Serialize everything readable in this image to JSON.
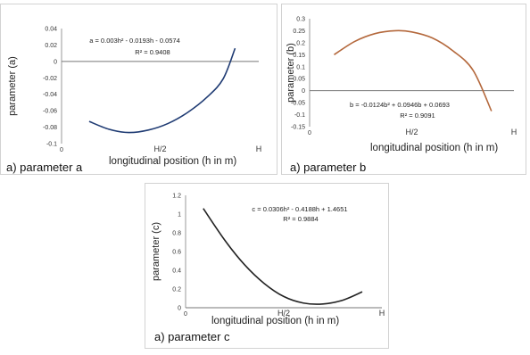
{
  "chart_data": [
    {
      "type": "line",
      "ylabel": "parameter (a)",
      "xlabel": "longitudinal position (h in m)",
      "caption": "a) parameter a",
      "equation": "a = 0.003h² - 0.0193h - 0.0574",
      "r2": "R² = 0.9408",
      "x_ticks": [
        "0",
        "H/2",
        "H"
      ],
      "y_ticks": [
        "0.04",
        "0.02",
        "0",
        "-0.02",
        "-0.04",
        "-0.06",
        "-0.08",
        "-0.1"
      ],
      "ylim": [
        -0.1,
        0.04
      ],
      "xlim": [
        0,
        1
      ],
      "grid": false,
      "series": [
        {
          "color": "#1f3b73",
          "x": [
            0.14,
            0.24,
            0.34,
            0.44,
            0.54,
            0.64,
            0.74,
            0.82,
            0.88
          ],
          "y": [
            -0.073,
            -0.0825,
            -0.0865,
            -0.0835,
            -0.0755,
            -0.062,
            -0.043,
            -0.021,
            0.016
          ]
        }
      ]
    },
    {
      "type": "line",
      "ylabel": "parameter (b)",
      "xlabel": "longitudinal position (h in m)",
      "caption": "a) parameter b",
      "equation": "b = -0.0124b² + 0.0946b + 0.0693",
      "r2": "R² = 0.9091",
      "x_ticks": [
        "0",
        "H/2",
        "H"
      ],
      "y_ticks": [
        "0.3",
        "0.25",
        "0.2",
        "0.15",
        "0.1",
        "0.05",
        "0",
        "-0.05",
        "-0.1",
        "-0.15"
      ],
      "ylim": [
        -0.15,
        0.3
      ],
      "xlim": [
        0,
        1
      ],
      "grid": false,
      "series": [
        {
          "color": "#b4683c",
          "x": [
            0.12,
            0.22,
            0.32,
            0.42,
            0.5,
            0.6,
            0.7,
            0.8,
            0.89
          ],
          "y": [
            0.15,
            0.205,
            0.238,
            0.25,
            0.245,
            0.22,
            0.167,
            0.085,
            -0.085
          ]
        }
      ]
    },
    {
      "type": "line",
      "ylabel": "parameter (c)",
      "xlabel": "longitudinal position (h in m)",
      "caption": "a) parameter c",
      "equation": "c = 0.0306h² - 0.4188h + 1.4651",
      "r2": "R² = 0.9884",
      "x_ticks": [
        "0",
        "H/2",
        "H"
      ],
      "y_ticks": [
        "1.2",
        "1",
        "0.8",
        "0.6",
        "0.4",
        "0.2",
        "0"
      ],
      "ylim": [
        0,
        1.2
      ],
      "xlim": [
        0,
        1
      ],
      "grid": false,
      "series": [
        {
          "color": "#222222",
          "x": [
            0.09,
            0.2,
            0.3,
            0.4,
            0.5,
            0.6,
            0.7,
            0.8,
            0.9
          ],
          "y": [
            1.06,
            0.72,
            0.46,
            0.26,
            0.12,
            0.05,
            0.04,
            0.08,
            0.17
          ]
        }
      ]
    }
  ]
}
